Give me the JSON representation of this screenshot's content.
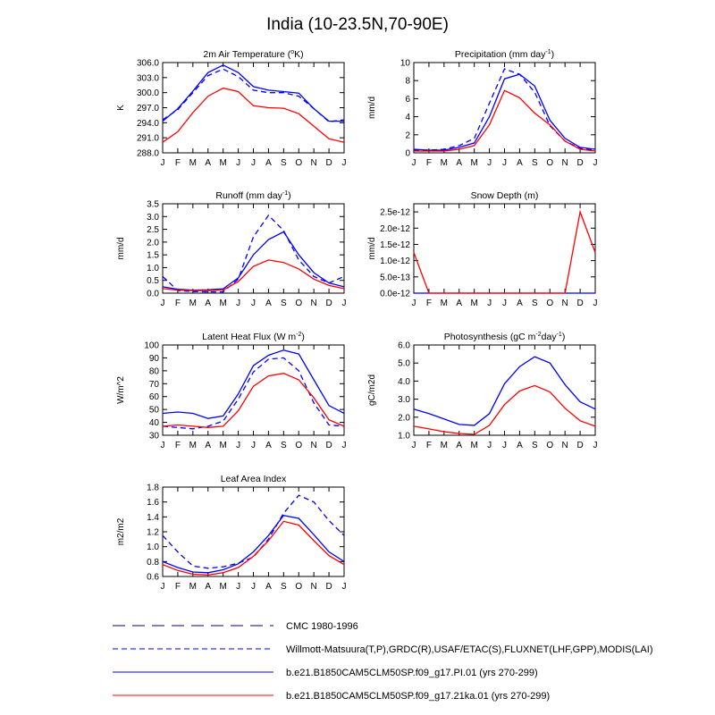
{
  "figure": {
    "title": "India (10-23.5N,70-90E)"
  },
  "months": [
    "J",
    "F",
    "M",
    "A",
    "M",
    "J",
    "J",
    "A",
    "S",
    "O",
    "N",
    "D",
    "J"
  ],
  "styles": {
    "cmc": {
      "color": "#000080",
      "dash": "14 8"
    },
    "obs": {
      "color": "#0000ff",
      "dash": "6 4"
    },
    "pi": {
      "color": "#0000ff",
      "dash": ""
    },
    "ka": {
      "color": "#ff0000",
      "dash": ""
    }
  },
  "legend": [
    {
      "key": "cmc",
      "label": "CMC 1980-1996"
    },
    {
      "key": "obs",
      "label": "Willmott-Matsuura(T,P),GRDC(R),USAF/ETAC(S),FLUXNET(LHF,GPP),MODIS(LAI)"
    },
    {
      "key": "pi",
      "label": "b.e21.B1850CAM5CLM50SP.f09_g17.PI.01 (yrs 270-299)"
    },
    {
      "key": "ka",
      "label": "b.e21.B1850CAM5CLM50SP.f09_g17.21ka.01 (yrs 270-299)"
    }
  ],
  "chart_data": [
    {
      "id": "tsa",
      "type": "line",
      "title_main": "2m Air Temperature (",
      "title_sup": "o",
      "title_end": "K)",
      "ylabel": "K",
      "ylim": [
        288.0,
        306.0
      ],
      "yticks": [
        "288.0",
        "291.0",
        "294.0",
        "297.0",
        "300.0",
        "303.0",
        "306.0"
      ],
      "series": [
        {
          "style": "obs",
          "values": [
            294.6,
            296.6,
            300.0,
            303.4,
            304.7,
            303.2,
            300.5,
            300.0,
            300.0,
            299.3,
            296.8,
            294.2,
            294.6
          ]
        },
        {
          "style": "pi",
          "values": [
            294.3,
            296.8,
            300.3,
            304.0,
            305.5,
            304.0,
            301.2,
            300.5,
            300.2,
            299.9,
            296.8,
            294.3,
            294.3
          ]
        },
        {
          "style": "ka",
          "values": [
            290.1,
            292.2,
            296.0,
            299.3,
            300.9,
            300.2,
            297.4,
            297.0,
            296.9,
            295.8,
            293.3,
            290.8,
            290.1
          ]
        }
      ]
    },
    {
      "id": "precip",
      "type": "line",
      "title_main": "Precipitation (mm day",
      "title_sup": "-1",
      "title_end": ")",
      "ylabel": "mm/d",
      "ylim": [
        0,
        10
      ],
      "yticks": [
        "0",
        "2",
        "4",
        "6",
        "8",
        "10"
      ],
      "series": [
        {
          "style": "obs",
          "values": [
            0.3,
            0.3,
            0.4,
            0.8,
            1.6,
            5.5,
            9.3,
            8.7,
            6.7,
            3.0,
            1.3,
            0.5,
            0.3
          ]
        },
        {
          "style": "pi",
          "values": [
            0.4,
            0.3,
            0.3,
            0.6,
            1.1,
            4.0,
            8.2,
            8.7,
            7.4,
            3.6,
            1.6,
            0.6,
            0.4
          ]
        },
        {
          "style": "ka",
          "values": [
            0.2,
            0.2,
            0.2,
            0.4,
            0.8,
            3.1,
            6.9,
            6.1,
            4.4,
            3.1,
            1.3,
            0.4,
            0.2
          ]
        }
      ]
    },
    {
      "id": "runoff",
      "type": "line",
      "title_main": "Runoff (mm day",
      "title_sup": "-1",
      "title_end": ")",
      "ylabel": "mm/d",
      "ylim": [
        0,
        3.5
      ],
      "yticks": [
        "0.0",
        "0.5",
        "1.0",
        "1.5",
        "2.0",
        "2.5",
        "3.0",
        "3.5"
      ],
      "series": [
        {
          "style": "obs",
          "values": [
            0.65,
            0.1,
            0.06,
            0.05,
            0.05,
            0.55,
            2.2,
            3.05,
            2.45,
            1.3,
            0.65,
            0.4,
            0.65
          ]
        },
        {
          "style": "pi",
          "values": [
            0.25,
            0.15,
            0.12,
            0.13,
            0.17,
            0.6,
            1.5,
            2.1,
            2.4,
            1.5,
            0.8,
            0.4,
            0.25
          ]
        },
        {
          "style": "ka",
          "values": [
            0.18,
            0.12,
            0.1,
            0.1,
            0.12,
            0.45,
            1.05,
            1.3,
            1.2,
            0.95,
            0.55,
            0.3,
            0.18
          ]
        }
      ]
    },
    {
      "id": "snow",
      "type": "line",
      "title_main": "Snow Depth (m)",
      "title_sup": "",
      "title_end": "",
      "ylabel": "mm/d",
      "ylim": [
        0,
        2.75e-12
      ],
      "yticks": [
        "0.0e-12",
        "5.0e-13",
        "1.0e-12",
        "1.5e-12",
        "2.0e-12",
        "2.5e-12"
      ],
      "ytick_values": [
        0,
        5e-13,
        1e-12,
        1.5e-12,
        2e-12,
        2.5e-12
      ],
      "series": [
        {
          "style": "pi",
          "values": [
            0,
            0,
            0,
            0,
            0,
            0,
            0,
            0,
            0,
            0,
            0,
            0,
            0
          ]
        },
        {
          "style": "ka",
          "values": [
            1.25e-12,
            0,
            0,
            0,
            0,
            0,
            0,
            0,
            0,
            0,
            0,
            2.5e-12,
            1.25e-12
          ]
        }
      ]
    },
    {
      "id": "lhf",
      "type": "line",
      "title_main": "Latent Heat Flux (W m",
      "title_sup": "-2",
      "title_end": ")",
      "ylabel": "W/m^2",
      "ylim": [
        30,
        100
      ],
      "yticks": [
        "30",
        "40",
        "50",
        "60",
        "70",
        "80",
        "90",
        "100"
      ],
      "series": [
        {
          "style": "obs",
          "values": [
            37,
            36,
            35,
            37,
            41,
            58,
            79,
            89,
            90,
            80,
            55,
            38,
            37
          ]
        },
        {
          "style": "pi",
          "values": [
            47,
            48,
            47,
            43,
            45,
            62,
            84,
            92,
            96,
            93,
            73,
            53,
            47
          ]
        },
        {
          "style": "ka",
          "values": [
            37,
            38,
            37,
            36,
            37,
            49,
            68,
            76,
            78,
            73,
            59,
            42,
            37
          ]
        }
      ]
    },
    {
      "id": "gpp",
      "type": "line",
      "title_main": "Photosynthesis (gC m",
      "title_sup": "-2",
      "title_end": "day",
      "title_sup2": "-1",
      "title_end2": ")",
      "ylabel": "gC/m2d",
      "ylim": [
        1.0,
        6.0
      ],
      "yticks": [
        "1.0",
        "2.0",
        "3.0",
        "4.0",
        "5.0",
        "6.0"
      ],
      "series": [
        {
          "style": "pi",
          "values": [
            2.45,
            2.2,
            1.9,
            1.6,
            1.55,
            2.2,
            3.85,
            4.8,
            5.35,
            5.0,
            3.8,
            2.85,
            2.45
          ]
        },
        {
          "style": "ka",
          "values": [
            1.5,
            1.35,
            1.2,
            1.1,
            1.05,
            1.55,
            2.7,
            3.45,
            3.75,
            3.4,
            2.5,
            1.8,
            1.5
          ]
        }
      ]
    },
    {
      "id": "lai",
      "type": "line",
      "title_main": "Leaf Area Index",
      "title_sup": "",
      "title_end": "",
      "ylabel": "m2/m2",
      "ylim": [
        0.6,
        1.8
      ],
      "yticks": [
        "0.6",
        "0.8",
        "1.0",
        "1.2",
        "1.4",
        "1.6",
        "1.8"
      ],
      "series": [
        {
          "style": "obs",
          "values": [
            1.15,
            0.93,
            0.74,
            0.71,
            0.73,
            0.78,
            0.86,
            1.1,
            1.45,
            1.69,
            1.6,
            1.35,
            1.15
          ]
        },
        {
          "style": "pi",
          "values": [
            0.8,
            0.72,
            0.66,
            0.65,
            0.69,
            0.77,
            0.93,
            1.15,
            1.42,
            1.38,
            1.16,
            0.93,
            0.8
          ]
        },
        {
          "style": "ka",
          "values": [
            0.76,
            0.68,
            0.63,
            0.62,
            0.65,
            0.72,
            0.87,
            1.08,
            1.34,
            1.29,
            1.08,
            0.88,
            0.76
          ]
        }
      ]
    }
  ]
}
